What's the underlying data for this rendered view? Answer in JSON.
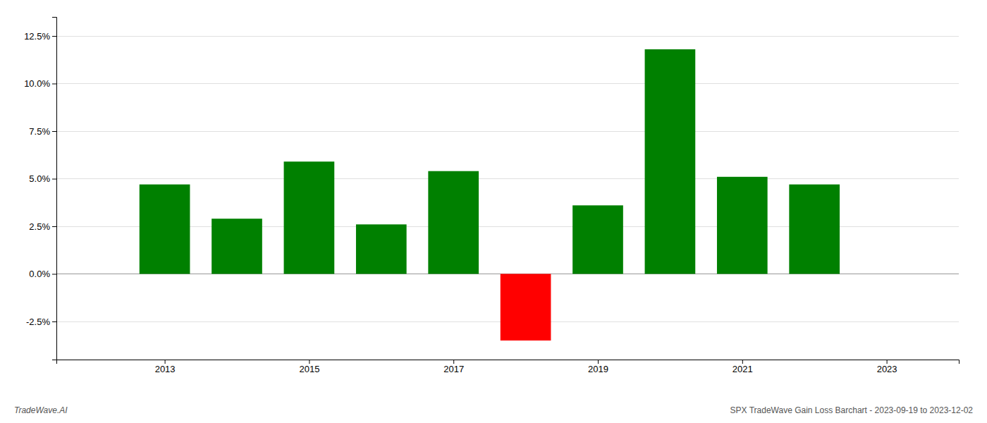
{
  "chart_data": {
    "type": "bar",
    "title": "SPX TradeWave Gain Loss Barchart - 2023-09-19 to 2023-12-02",
    "annotations": [
      "TradeWave.AI"
    ],
    "x": [
      2013,
      2014,
      2015,
      2016,
      2017,
      2018,
      2019,
      2020,
      2021,
      2022
    ],
    "values": [
      0.047,
      0.029,
      0.059,
      0.026,
      0.054,
      -0.035,
      0.036,
      0.118,
      0.051,
      0.047
    ],
    "colors": [
      "#008000",
      "#008000",
      "#008000",
      "#008000",
      "#008000",
      "#ff0000",
      "#008000",
      "#008000",
      "#008000",
      "#008000"
    ],
    "xlim": [
      2011.5,
      2024.0
    ],
    "xticks": [
      2013,
      2015,
      2017,
      2019,
      2021,
      2023
    ],
    "ylim": [
      -0.045,
      0.135
    ],
    "yticks": [
      {
        "value": -0.025,
        "label": "-2.5%"
      },
      {
        "value": 0.0,
        "label": "0.0%"
      },
      {
        "value": 0.025,
        "label": "2.5%"
      },
      {
        "value": 0.05,
        "label": "5.0%"
      },
      {
        "value": 0.075,
        "label": "7.5%"
      },
      {
        "value": 0.1,
        "label": "10.0%"
      },
      {
        "value": 0.125,
        "label": "12.5%"
      }
    ],
    "grid": true
  }
}
